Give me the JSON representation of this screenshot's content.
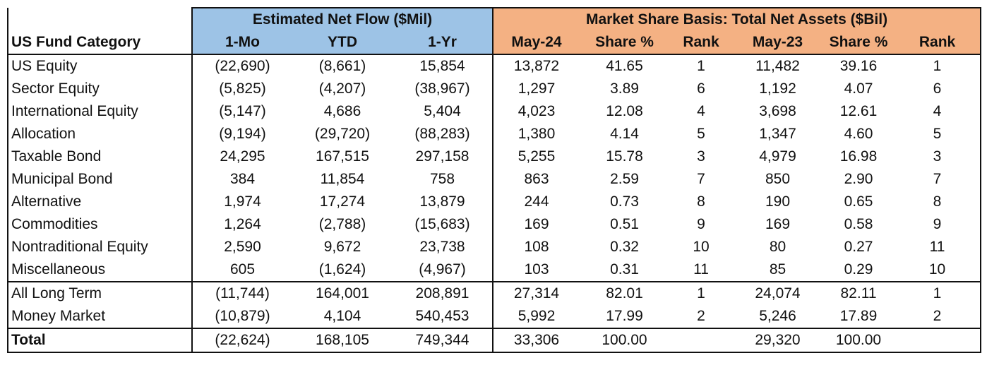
{
  "chart_data": {
    "type": "table",
    "title": "",
    "group_headers": [
      "Estimated Net Flow ($Mil)",
      "Market Share Basis: Total Net Assets ($Bil)"
    ],
    "columns": [
      "US Fund Category",
      "1-Mo",
      "YTD",
      "1-Yr",
      "May-24",
      "Share %",
      "Rank",
      "May-23",
      "Share %",
      "Rank"
    ],
    "rows": [
      [
        "US Equity",
        "(22,690)",
        "(8,661)",
        "15,854",
        "13,872",
        "41.65",
        "1",
        "11,482",
        "39.16",
        "1"
      ],
      [
        "Sector Equity",
        "(5,825)",
        "(4,207)",
        "(38,967)",
        "1,297",
        "3.89",
        "6",
        "1,192",
        "4.07",
        "6"
      ],
      [
        "International Equity",
        "(5,147)",
        "4,686",
        "5,404",
        "4,023",
        "12.08",
        "4",
        "3,698",
        "12.61",
        "4"
      ],
      [
        "Allocation",
        "(9,194)",
        "(29,720)",
        "(88,283)",
        "1,380",
        "4.14",
        "5",
        "1,347",
        "4.60",
        "5"
      ],
      [
        "Taxable Bond",
        "24,295",
        "167,515",
        "297,158",
        "5,255",
        "15.78",
        "3",
        "4,979",
        "16.98",
        "3"
      ],
      [
        "Municipal Bond",
        "384",
        "11,854",
        "758",
        "863",
        "2.59",
        "7",
        "850",
        "2.90",
        "7"
      ],
      [
        "Alternative",
        "1,974",
        "17,274",
        "13,879",
        "244",
        "0.73",
        "8",
        "190",
        "0.65",
        "8"
      ],
      [
        "Commodities",
        "1,264",
        "(2,788)",
        "(15,683)",
        "169",
        "0.51",
        "9",
        "169",
        "0.58",
        "9"
      ],
      [
        "Nontraditional Equity",
        "2,590",
        "9,672",
        "23,738",
        "108",
        "0.32",
        "10",
        "80",
        "0.27",
        "11"
      ],
      [
        "Miscellaneous",
        "605",
        "(1,624)",
        "(4,967)",
        "103",
        "0.31",
        "11",
        "85",
        "0.29",
        "10"
      ],
      [
        "All Long Term",
        "(11,744)",
        "164,001",
        "208,891",
        "27,314",
        "82.01",
        "1",
        "24,074",
        "82.11",
        "1"
      ],
      [
        "Money Market",
        "(10,879)",
        "4,104",
        "540,453",
        "5,992",
        "17.99",
        "2",
        "5,246",
        "17.89",
        "2"
      ],
      [
        "Total",
        "(22,624)",
        "168,105",
        "749,344",
        "33,306",
        "100.00",
        "",
        "29,320",
        "100.00",
        ""
      ]
    ]
  }
}
